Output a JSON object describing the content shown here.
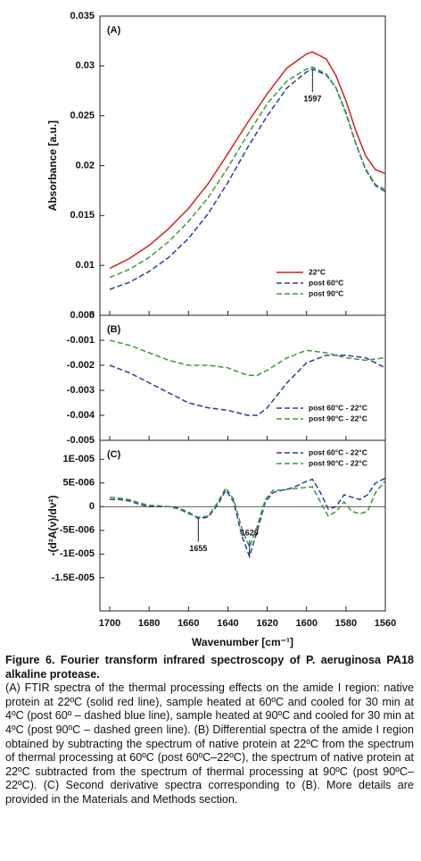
{
  "chart_data": [
    {
      "type": "line",
      "label": "(A)",
      "ylabel": "Absorbance [a.u.]",
      "xlim": [
        1705,
        1560
      ],
      "xticks": [
        1700,
        1680,
        1660,
        1640,
        1620,
        1600,
        1580,
        1560
      ],
      "ylim": [
        0.005,
        0.035
      ],
      "yticks": [
        0.005,
        0.01,
        0.015,
        0.02,
        0.025,
        0.03,
        0.035
      ],
      "legend": "lower right",
      "x": [
        1700,
        1690,
        1680,
        1670,
        1660,
        1650,
        1640,
        1630,
        1620,
        1610,
        1600,
        1597,
        1590,
        1585,
        1580,
        1575,
        1570,
        1565,
        1560
      ],
      "series": [
        {
          "name": "22°C",
          "color": "#d42020",
          "linestyle": "solid",
          "values": [
            0.0097,
            0.0107,
            0.012,
            0.0137,
            0.0157,
            0.0182,
            0.0212,
            0.0243,
            0.0272,
            0.0298,
            0.0312,
            0.0314,
            0.0307,
            0.029,
            0.0265,
            0.0235,
            0.021,
            0.0196,
            0.0192
          ]
        },
        {
          "name": "post 60°C",
          "color": "#2a3d9e",
          "linestyle": "dashed",
          "values": [
            0.0076,
            0.0083,
            0.0094,
            0.0108,
            0.0127,
            0.0152,
            0.0183,
            0.0218,
            0.025,
            0.0278,
            0.0294,
            0.0297,
            0.0291,
            0.0278,
            0.0253,
            0.0222,
            0.0196,
            0.018,
            0.0174
          ]
        },
        {
          "name": "post 90°C",
          "color": "#3a9a3a",
          "linestyle": "dashed",
          "values": [
            0.0088,
            0.0096,
            0.0108,
            0.0124,
            0.0144,
            0.0168,
            0.0198,
            0.0231,
            0.0262,
            0.0285,
            0.0297,
            0.0299,
            0.0292,
            0.0278,
            0.0252,
            0.0222,
            0.0197,
            0.0181,
            0.0176
          ]
        }
      ],
      "annotations": [
        {
          "text": "1597",
          "x": 1597,
          "y": 0.0297
        }
      ]
    },
    {
      "type": "line",
      "label": "(B)",
      "xlim": [
        1705,
        1560
      ],
      "xticks": [
        1700,
        1680,
        1660,
        1640,
        1620,
        1600,
        1580,
        1560
      ],
      "ylim": [
        -0.005,
        0
      ],
      "yticks": [
        -0.005,
        -0.004,
        -0.003,
        -0.002,
        -0.001,
        0
      ],
      "legend": "lower right",
      "x": [
        1700,
        1690,
        1680,
        1670,
        1660,
        1650,
        1640,
        1630,
        1625,
        1620,
        1610,
        1600,
        1590,
        1580,
        1570,
        1560
      ],
      "series": [
        {
          "name": "post 60°C - 22°C",
          "color": "#2a3d9e",
          "linestyle": "dashed",
          "values": [
            -0.002,
            -0.0023,
            -0.0027,
            -0.0031,
            -0.0035,
            -0.0037,
            -0.0038,
            -0.004,
            -0.004,
            -0.0037,
            -0.0027,
            -0.0019,
            -0.0016,
            -0.0016,
            -0.0017,
            -0.0021
          ]
        },
        {
          "name": "post 90°C - 22°C",
          "color": "#3a9a3a",
          "linestyle": "dashed",
          "values": [
            -0.001,
            -0.0012,
            -0.0015,
            -0.0018,
            -0.002,
            -0.002,
            -0.0021,
            -0.0024,
            -0.0024,
            -0.0022,
            -0.0017,
            -0.0014,
            -0.0015,
            -0.0017,
            -0.0018,
            -0.0017
          ]
        }
      ]
    },
    {
      "type": "line",
      "label": "(C)",
      "ylabel": "-(d²A(ν)/dν²)",
      "xlabel": "Wavenumber [cm⁻¹]",
      "xlim": [
        1705,
        1560
      ],
      "xticks": [
        1700,
        1680,
        1660,
        1640,
        1620,
        1600,
        1580,
        1560
      ],
      "ylim": [
        -2.2e-05,
        1.4e-05
      ],
      "yticks": [
        {
          "value": -1.5e-05,
          "label": "-1.5E-005"
        },
        {
          "value": -1e-05,
          "label": "-1E-005"
        },
        {
          "value": -5e-06,
          "label": "-5E-006"
        },
        0,
        {
          "value": 5e-06,
          "label": "5E-006"
        },
        {
          "value": 1e-05,
          "label": "1E-005"
        }
      ],
      "legend": "upper right",
      "x": [
        1700,
        1695,
        1690,
        1685,
        1680,
        1675,
        1670,
        1665,
        1660,
        1655,
        1650,
        1645,
        1641,
        1637,
        1633,
        1629,
        1625,
        1621,
        1617,
        1612,
        1607,
        1602,
        1597,
        1593,
        1589,
        1585,
        1581,
        1577,
        1573,
        1569,
        1565,
        1560
      ],
      "series": [
        {
          "name": "post 60°C - 22°C",
          "color": "#2a3d9e",
          "linestyle": "dashed",
          "values": [
            1.5e-06,
            1.5e-06,
            1.2e-06,
            5e-07,
            0,
            0,
            0,
            -3e-07,
            -1.2e-06,
            -2.5e-06,
            -2.2e-06,
            5e-07,
            3.5e-06,
            1e-06,
            -6e-06,
            -1.05e-05,
            -5e-06,
            1e-06,
            3e-06,
            3.5e-06,
            4e-06,
            5e-06,
            5.8e-06,
            3e-06,
            -5e-07,
            0,
            2.5e-06,
            2e-06,
            1.5e-06,
            2.5e-06,
            5e-06,
            6e-06
          ]
        },
        {
          "name": "post 90°C - 22°C",
          "color": "#3a9a3a",
          "linestyle": "dashed",
          "values": [
            2e-06,
            1.8e-06,
            1.5e-06,
            8e-07,
            3e-07,
            2e-07,
            0,
            -5e-07,
            -1.5e-06,
            -2.2e-06,
            -2e-06,
            1e-06,
            4e-06,
            1.5e-06,
            -4.5e-06,
            -8.5e-06,
            -4e-06,
            1.5e-06,
            3.5e-06,
            3.5e-06,
            3.8e-06,
            4e-06,
            4.2e-06,
            1e-06,
            -2e-06,
            -1e-06,
            1e-06,
            -1e-06,
            -1.5e-06,
            -1e-06,
            3e-06,
            5.5e-06
          ]
        }
      ],
      "annotations": [
        {
          "text": "1655",
          "x": 1655,
          "y": -2.5e-06
        },
        {
          "text": "1629",
          "x": 1629,
          "y": -1.05e-05
        }
      ]
    }
  ],
  "caption": {
    "title": "Figure 6. Fourier transform infrared spectroscopy of P. aeruginosa PA18 alkaline protease.",
    "text": "(A) FTIR spectra of the thermal processing effects on the amide I region: native protein at 22ºC (solid red line), sample heated at 60ºC and cooled for 30 min at 4ºC (post 60º – dashed blue line), sample heated at 90ºC and cooled for 30 min at 4ºC (post 90ºC – dashed green line). (B) Differential spectra of the amide I region obtained by subtracting the spectrum of native protein at 22ºC from the spectrum of thermal processing at 60ºC (post 60ºC–22ºC), the spectrum of native protein at 22ºC subtracted from the spectrum of thermal processing at 90ºC (post 90ºC–22ºC). (C) Second derivative spectra corresponding to (B). More details are provided in the Materials and Methods section."
  }
}
